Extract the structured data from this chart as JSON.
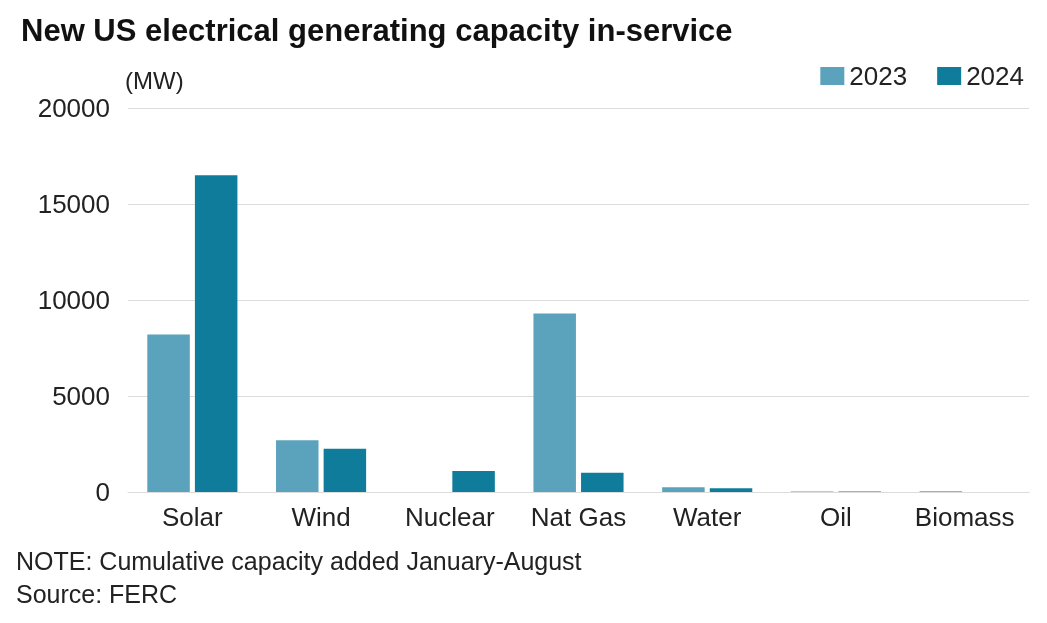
{
  "chart_data": {
    "type": "bar",
    "title": "New US electrical generating capacity in-service",
    "ylabel": "(MW)",
    "categories": [
      "Solar",
      "Wind",
      "Nuclear",
      "Nat Gas",
      "Water",
      "Oil",
      "Biomass"
    ],
    "series": [
      {
        "name": "2023",
        "color": "#5ba3bd",
        "values": [
          8200,
          2700,
          0,
          9300,
          250,
          30,
          40
        ]
      },
      {
        "name": "2024",
        "color": "#0e7c9a",
        "values": [
          16500,
          2250,
          1100,
          1000,
          200,
          30,
          0
        ]
      }
    ],
    "ylim": [
      0,
      20000
    ],
    "yticks": [
      0,
      5000,
      10000,
      15000,
      20000
    ],
    "grid": "y",
    "legend": "top right",
    "annotations": [
      "NOTE: Cumulative capacity added January-August",
      "Source: FERC"
    ]
  }
}
